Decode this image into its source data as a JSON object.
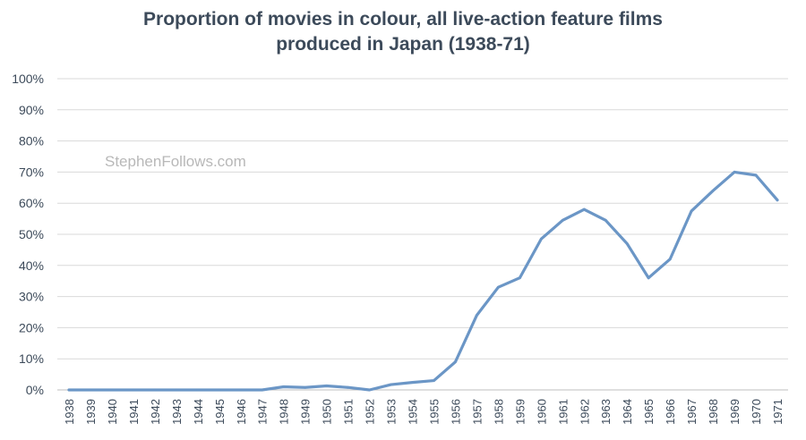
{
  "chart_data": {
    "type": "line",
    "title_lines": [
      "Proportion of movies in colour, all live-action feature films",
      "produced in Japan (1938-71)"
    ],
    "watermark": "StephenFollows.com",
    "xlabel": "",
    "ylabel": "",
    "ylim": [
      0,
      100
    ],
    "y_ticks": [
      "0%",
      "10%",
      "20%",
      "30%",
      "40%",
      "50%",
      "60%",
      "70%",
      "80%",
      "90%",
      "100%"
    ],
    "grid": true,
    "legend": "none",
    "line_color": "#6b96c6",
    "x": [
      "1938",
      "1939",
      "1940",
      "1941",
      "1942",
      "1943",
      "1944",
      "1945",
      "1946",
      "1947",
      "1948",
      "1949",
      "1950",
      "1951",
      "1952",
      "1953",
      "1954",
      "1955",
      "1956",
      "1957",
      "1958",
      "1959",
      "1960",
      "1961",
      "1962",
      "1963",
      "1964",
      "1965",
      "1966",
      "1967",
      "1968",
      "1969",
      "1970",
      "1971"
    ],
    "series": [
      {
        "values": [
          0,
          0,
          0,
          0,
          0,
          0,
          0,
          0,
          0,
          0,
          1,
          0.8,
          1.3,
          0.8,
          0,
          1.7,
          2.4,
          3,
          9,
          24,
          33,
          36,
          48.5,
          54.5,
          58,
          54.5,
          47,
          36,
          42,
          57.5,
          64,
          70,
          69,
          61
        ]
      }
    ]
  }
}
